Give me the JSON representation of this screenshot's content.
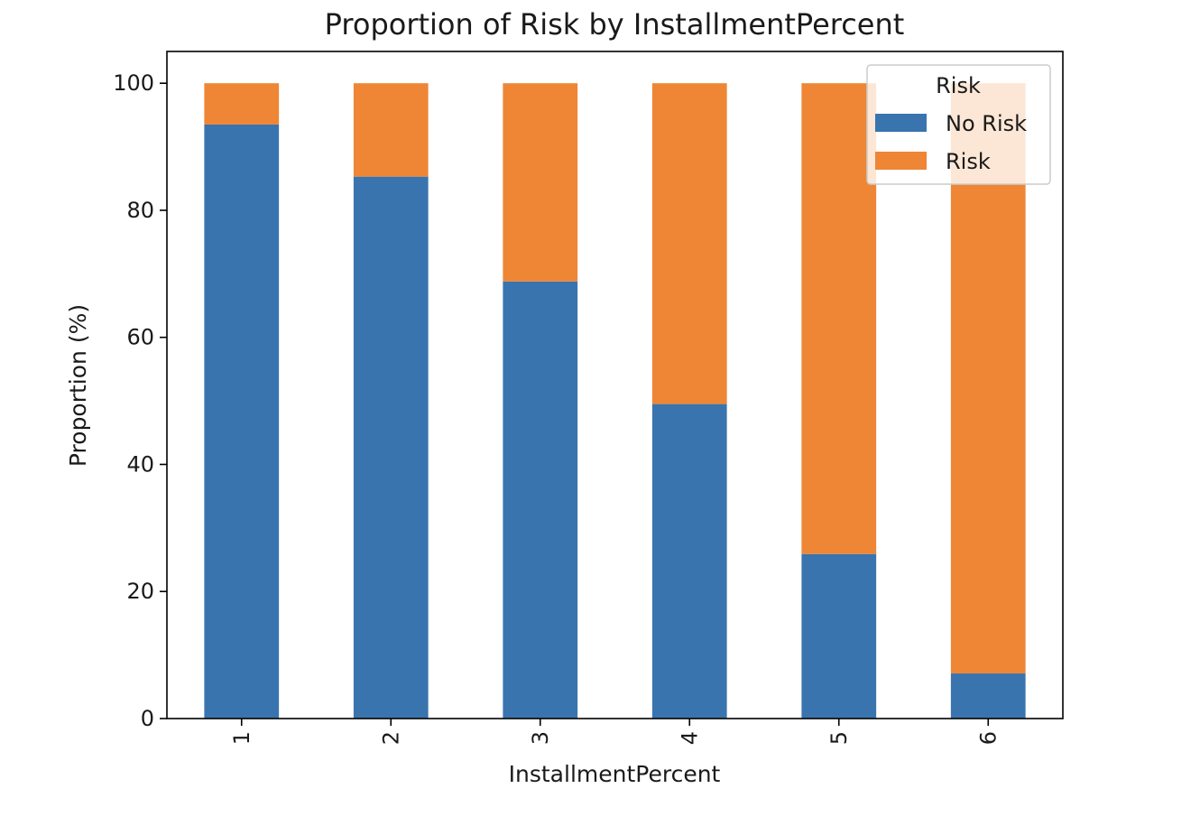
{
  "chart_data": {
    "type": "bar",
    "stacked": true,
    "title": "Proportion of Risk by InstallmentPercent",
    "xlabel": "InstallmentPercent",
    "ylabel": "Proportion (%)",
    "categories": [
      "1",
      "2",
      "3",
      "4",
      "5",
      "6"
    ],
    "ylim": [
      0,
      105
    ],
    "yticks": [
      "0",
      "20",
      "40",
      "60",
      "80",
      "100"
    ],
    "grid": false,
    "legend": {
      "title": "Risk",
      "placement": "top-right"
    },
    "series": [
      {
        "name": "No Risk",
        "color": "#3a74ae",
        "values": [
          93.5,
          85.3,
          68.8,
          49.5,
          25.9,
          7.1
        ]
      },
      {
        "name": "Risk",
        "color": "#ee8636",
        "values": [
          6.5,
          14.7,
          31.2,
          50.5,
          74.1,
          92.9
        ]
      }
    ]
  }
}
